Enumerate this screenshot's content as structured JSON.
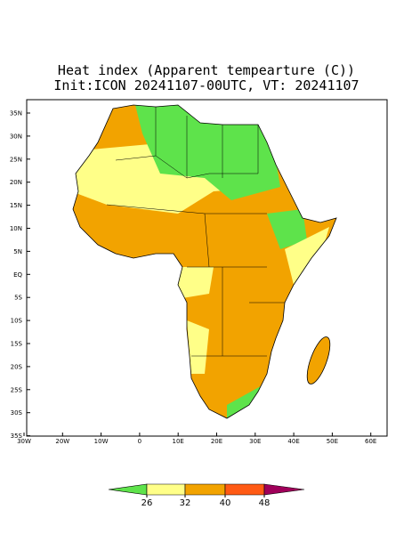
{
  "title": [
    "Heat index (Apparent tempearture (C))",
    "Init:ICON 20241107-00UTC, VT: 20241107"
  ],
  "lat_labels": [
    "35N",
    "30N",
    "25N",
    "20N",
    "15N",
    "10N",
    "5N",
    "EQ",
    "5S",
    "10S",
    "15S",
    "20S",
    "25S",
    "30S",
    "35S"
  ],
  "lon_labels": [
    "30W",
    "20W",
    "10W",
    "0",
    "10E",
    "20E",
    "30E",
    "40E",
    "50E",
    "60E"
  ],
  "legend": {
    "ticks": [
      26,
      32,
      40,
      48
    ],
    "colors": [
      "#5ee34b",
      "#ffff88",
      "#f2a300",
      "#ff5a14",
      "#a0005a"
    ]
  }
}
